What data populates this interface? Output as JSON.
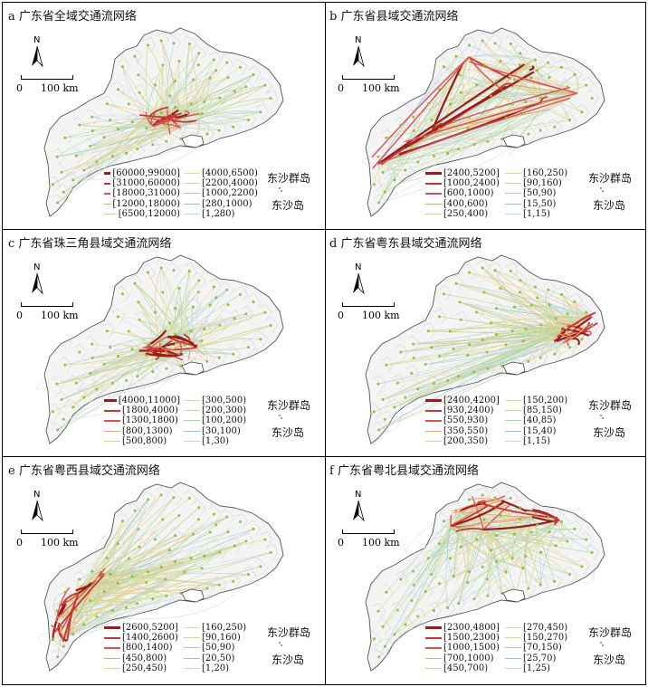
{
  "common": {
    "north_label": "N",
    "scale_zero": "0",
    "scale_distance": "100 km",
    "island_group_label": "东沙群岛",
    "island_label": "东沙岛"
  },
  "panels": [
    {
      "letter": "a",
      "title": "广东省全域交通流网络",
      "focus": "core",
      "legend_left": [
        {
          "label": "[60000,99000]",
          "color": "#9b1b1b"
        },
        {
          "label": "[31000,60000)",
          "color": "#c73535"
        },
        {
          "label": "[18000,31000)",
          "color": "#e0504f"
        },
        {
          "label": "[12000,18000)",
          "color": "#f0a36b"
        },
        {
          "label": "[6500,12000)",
          "color": "#e8c98a"
        }
      ],
      "legend_right": [
        {
          "label": "[4000,6500)",
          "color": "#e9dc8e"
        },
        {
          "label": "[2200,4000)",
          "color": "#c9dc8a"
        },
        {
          "label": "[1000,2200)",
          "color": "#a8d6a0"
        },
        {
          "label": "[280,1000)",
          "color": "#8fc6d6"
        },
        {
          "label": "[1,280)",
          "color": "#c8d8e6"
        }
      ]
    },
    {
      "letter": "b",
      "title": "广东省县域交通流网络",
      "focus": "all",
      "legend_left": [
        {
          "label": "[2400,5200]",
          "color": "#9b1b1b"
        },
        {
          "label": "[1000,2400)",
          "color": "#c73535"
        },
        {
          "label": "[600,1000)",
          "color": "#e0504f"
        },
        {
          "label": "[400,600)",
          "color": "#f0a36b"
        },
        {
          "label": "[250,400)",
          "color": "#e8c98a"
        }
      ],
      "legend_right": [
        {
          "label": "[160,250)",
          "color": "#e9dc8e"
        },
        {
          "label": "[90,160)",
          "color": "#c9dc8a"
        },
        {
          "label": "[50,90)",
          "color": "#a8d6a0"
        },
        {
          "label": "[15,50)",
          "color": "#8fc6d6"
        },
        {
          "label": "[1,15)",
          "color": "#c8d8e6"
        }
      ]
    },
    {
      "letter": "c",
      "title": "广东省珠三角县域交通流网络",
      "focus": "core",
      "legend_left": [
        {
          "label": "[4000,11000]",
          "color": "#9b1b1b"
        },
        {
          "label": "[1800,4000)",
          "color": "#c73535"
        },
        {
          "label": "[1300,1800)",
          "color": "#e0504f"
        },
        {
          "label": "[800,1300)",
          "color": "#f0a36b"
        },
        {
          "label": "[500,800)",
          "color": "#e8c98a"
        }
      ],
      "legend_right": [
        {
          "label": "[300,500)",
          "color": "#e9dc8e"
        },
        {
          "label": "[200,300)",
          "color": "#c9dc8a"
        },
        {
          "label": "[100,200)",
          "color": "#a8d6a0"
        },
        {
          "label": "[30,100)",
          "color": "#8fc6d6"
        },
        {
          "label": "[1,30)",
          "color": "#c8d8e6"
        }
      ]
    },
    {
      "letter": "d",
      "title": "广东省粤东县域交通流网络",
      "focus": "east",
      "legend_left": [
        {
          "label": "[2400,4200]",
          "color": "#9b1b1b"
        },
        {
          "label": "[930,2400)",
          "color": "#c73535"
        },
        {
          "label": "[550,930)",
          "color": "#e0504f"
        },
        {
          "label": "[350,550)",
          "color": "#f0a36b"
        },
        {
          "label": "[200,350)",
          "color": "#e8c98a"
        }
      ],
      "legend_right": [
        {
          "label": "[150,200)",
          "color": "#e9dc8e"
        },
        {
          "label": "[85,150)",
          "color": "#c9dc8a"
        },
        {
          "label": "[40,85)",
          "color": "#a8d6a0"
        },
        {
          "label": "[15,40)",
          "color": "#8fc6d6"
        },
        {
          "label": "[1,15)",
          "color": "#c8d8e6"
        }
      ]
    },
    {
      "letter": "e",
      "title": "广东省粤西县域交通流网络",
      "focus": "west",
      "legend_left": [
        {
          "label": "[2600,5200]",
          "color": "#9b1b1b"
        },
        {
          "label": "[1400,2600)",
          "color": "#c73535"
        },
        {
          "label": "[800,1400)",
          "color": "#e0504f"
        },
        {
          "label": "[450,800)",
          "color": "#f0a36b"
        },
        {
          "label": "[250,450)",
          "color": "#e8c98a"
        }
      ],
      "legend_right": [
        {
          "label": "[160,250)",
          "color": "#e9dc8e"
        },
        {
          "label": "[90,160)",
          "color": "#c9dc8a"
        },
        {
          "label": "[50,90)",
          "color": "#a8d6a0"
        },
        {
          "label": "[20,50)",
          "color": "#8fc6d6"
        },
        {
          "label": "[1,20)",
          "color": "#c8d8e6"
        }
      ]
    },
    {
      "letter": "f",
      "title": "广东省粤北县域交通流网络",
      "focus": "north",
      "legend_left": [
        {
          "label": "[2300,4800]",
          "color": "#9b1b1b"
        },
        {
          "label": "[1500,2300)",
          "color": "#c73535"
        },
        {
          "label": "[1000,1500)",
          "color": "#e0504f"
        },
        {
          "label": "[700,1000)",
          "color": "#f0a36b"
        },
        {
          "label": "[450,700)",
          "color": "#e8c98a"
        }
      ],
      "legend_right": [
        {
          "label": "[270,450)",
          "color": "#e9dc8e"
        },
        {
          "label": "[150,270)",
          "color": "#c9dc8a"
        },
        {
          "label": "[70,150)",
          "color": "#a8d6a0"
        },
        {
          "label": "[25,70)",
          "color": "#8fc6d6"
        },
        {
          "label": "[1,25)",
          "color": "#c8d8e6"
        }
      ]
    }
  ]
}
